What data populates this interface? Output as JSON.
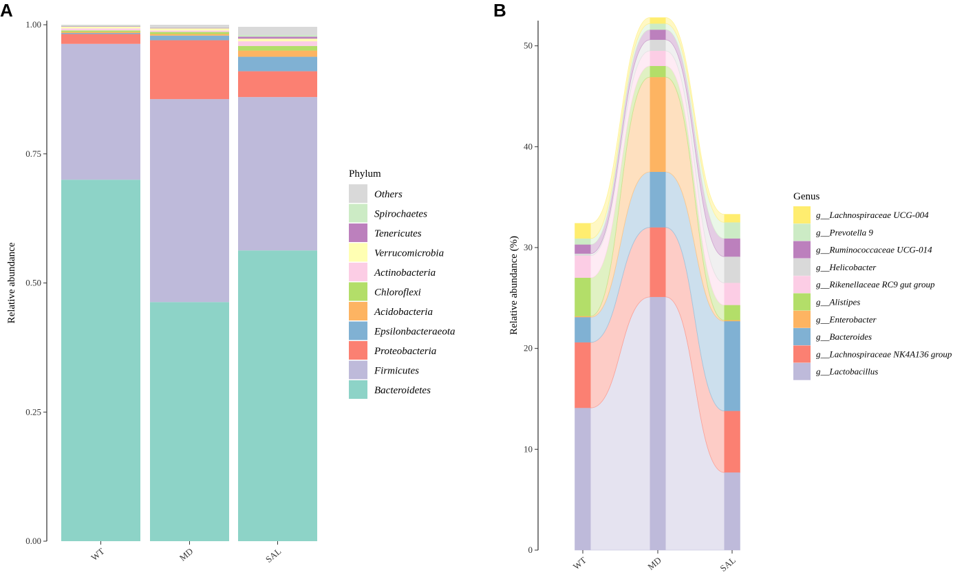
{
  "chart_data": [
    {
      "panel": "A",
      "type": "bar",
      "stacked": true,
      "ylabel": "Relative abundance",
      "xlabel": "",
      "ylim": [
        0,
        1
      ],
      "yticks": [
        "0.00",
        "0.25",
        "0.50",
        "0.75",
        "1.00"
      ],
      "categories": [
        "WT",
        "MD",
        "SAL"
      ],
      "legend_title": "Phylum",
      "legend_position": "right",
      "series": [
        {
          "name": "Bacteroidetes",
          "color": "#8DD3C7",
          "values": [
            0.7,
            0.463,
            0.563
          ]
        },
        {
          "name": "Firmicutes",
          "color": "#BEBADA",
          "values": [
            0.263,
            0.393,
            0.297
          ]
        },
        {
          "name": "Proteobacteria",
          "color": "#FB8072",
          "values": [
            0.019,
            0.114,
            0.05
          ]
        },
        {
          "name": "Epsilonbacteraeota",
          "color": "#80B1D3",
          "values": [
            0.002,
            0.009,
            0.028
          ]
        },
        {
          "name": "Acidobacteria",
          "color": "#FDB462",
          "values": [
            0.002,
            0.003,
            0.012
          ]
        },
        {
          "name": "Chloroflexi",
          "color": "#B3DE69",
          "values": [
            0.003,
            0.004,
            0.009
          ]
        },
        {
          "name": "Actinobacteria",
          "color": "#FCCDE5",
          "values": [
            0.004,
            0.003,
            0.009
          ]
        },
        {
          "name": "Verrucomicrobia",
          "color": "#FFFFB3",
          "values": [
            0.003,
            0.004,
            0.005
          ]
        },
        {
          "name": "Tenericutes",
          "color": "#BC80BD",
          "values": [
            0.001,
            0.001,
            0.004
          ]
        },
        {
          "name": "Spirochaetes",
          "color": "#CCEBC5",
          "values": [
            0.001,
            0.001,
            0.003
          ]
        },
        {
          "name": "Others",
          "color": "#D9D9D9",
          "values": [
            0.002,
            0.005,
            0.016
          ]
        }
      ]
    },
    {
      "panel": "B",
      "type": "area",
      "stacked": true,
      "ylabel": "Relative abundance (%)",
      "xlabel": "",
      "ylim": [
        0,
        52.5
      ],
      "yticks": [
        "0",
        "10",
        "20",
        "30",
        "40",
        "50"
      ],
      "categories": [
        "WT",
        "MD",
        "SAL"
      ],
      "legend_title": "Genus",
      "legend_position": "right",
      "series": [
        {
          "name": "g__Lactobacillus",
          "color": "#BEBADA",
          "values": [
            14.1,
            25.1,
            7.7
          ]
        },
        {
          "name": "g__Lachnospiraceae NK4A136 group",
          "color": "#FB8072",
          "values": [
            6.5,
            6.9,
            6.1
          ]
        },
        {
          "name": "g__Bacteroides",
          "color": "#80B1D3",
          "values": [
            2.5,
            5.5,
            8.9
          ]
        },
        {
          "name": "g__Enterobacter",
          "color": "#FDB462",
          "values": [
            0.1,
            9.4,
            0.1
          ]
        },
        {
          "name": "g__Alistipes",
          "color": "#B3DE69",
          "values": [
            3.8,
            1.1,
            1.5
          ]
        },
        {
          "name": "g__Rikenellaceae RC9 gut group",
          "color": "#FCCDE5",
          "values": [
            2.2,
            1.5,
            2.2
          ]
        },
        {
          "name": "g__Helicobacter",
          "color": "#D9D9D9",
          "values": [
            0.2,
            1.1,
            2.6
          ]
        },
        {
          "name": "g__Ruminococcaceae UCG-014",
          "color": "#BC80BD",
          "values": [
            0.9,
            1.0,
            1.8
          ]
        },
        {
          "name": "g__Prevotella 9",
          "color": "#CCEBC5",
          "values": [
            0.6,
            0.6,
            1.6
          ]
        },
        {
          "name": "g__Lachnospiraceae UCG-004",
          "color": "#FFED6F",
          "values": [
            1.5,
            0.6,
            0.8
          ]
        }
      ]
    }
  ]
}
